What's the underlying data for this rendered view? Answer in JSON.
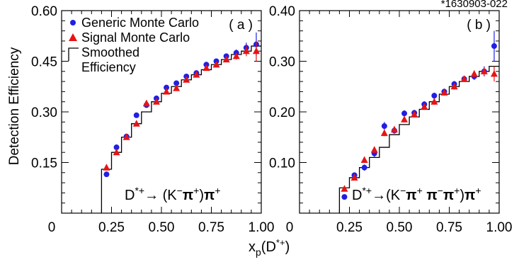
{
  "figure_id": "*1630903-022",
  "x_axis_label_main": "x",
  "x_axis_label_sub": "p",
  "x_axis_label_rest": "(D",
  "x_axis_label_sup": "*+",
  "x_axis_label_close": ")",
  "colors": {
    "generic": "#1f1fe6",
    "signal": "#e61414",
    "smoothed": "#000000",
    "frame": "#000000"
  },
  "chart_data": [
    {
      "type": "scatter",
      "panel_label": "( a )",
      "ylabel": "Detection Efficiency",
      "xlabel": "xp(D*+)",
      "xlim": [
        0,
        1.0
      ],
      "ylim": [
        0,
        0.6
      ],
      "x_ticks": [
        "0",
        "0.25",
        "0.50",
        "0.75",
        "1.00"
      ],
      "y_ticks": [
        "0.15",
        "0.30",
        "0.45",
        "0.60"
      ],
      "y_tick_values": [
        0.15,
        0.3,
        0.45,
        0.6
      ],
      "decay": {
        "parts": [
          {
            "t": "D",
            "sub": false
          },
          {
            "t": "*+",
            "sup": true
          },
          {
            "t": "→",
            "sup": false
          },
          {
            "t": " (K",
            "sup": false
          },
          {
            "t": "−",
            "sup": true
          },
          {
            "t": "π",
            "sup": false,
            "bold": true
          },
          {
            "t": "+",
            "sup": true
          },
          {
            "t": ")",
            "sup": false
          },
          {
            "t": "π",
            "sup": false,
            "bold": true
          },
          {
            "t": "+",
            "sup": true
          }
        ]
      },
      "legend": [
        {
          "marker": "circle",
          "color_key": "generic",
          "text": "Generic Monte Carlo"
        },
        {
          "marker": "triangle",
          "color_key": "signal",
          "text": "Signal Monte Carlo"
        },
        {
          "marker": "step",
          "color_key": "smoothed",
          "text": "Smoothed"
        },
        {
          "marker": "none",
          "color_key": "smoothed",
          "text": "Efficiency"
        }
      ],
      "series": [
        {
          "name": "Generic Monte Carlo",
          "marker": "circle",
          "x": [
            0.225,
            0.275,
            0.325,
            0.375,
            0.425,
            0.475,
            0.525,
            0.575,
            0.625,
            0.675,
            0.725,
            0.775,
            0.825,
            0.875,
            0.925,
            0.975
          ],
          "y": [
            0.115,
            0.195,
            0.227,
            0.29,
            0.32,
            0.34,
            0.372,
            0.385,
            0.405,
            0.415,
            0.44,
            0.45,
            0.465,
            0.475,
            0.49,
            0.5
          ],
          "err": [
            0.007,
            0.007,
            0.007,
            0.007,
            0.007,
            0.007,
            0.007,
            0.007,
            0.007,
            0.007,
            0.007,
            0.007,
            0.008,
            0.01,
            0.015,
            0.035
          ]
        },
        {
          "name": "Signal Monte Carlo",
          "marker": "triangle",
          "x": [
            0.225,
            0.275,
            0.325,
            0.375,
            0.425,
            0.475,
            0.525,
            0.575,
            0.625,
            0.675,
            0.725,
            0.775,
            0.825,
            0.875,
            0.925,
            0.975
          ],
          "y": [
            0.135,
            0.18,
            0.225,
            0.265,
            0.325,
            0.33,
            0.36,
            0.37,
            0.395,
            0.41,
            0.43,
            0.44,
            0.455,
            0.465,
            0.48,
            0.48
          ],
          "err": [
            0.007,
            0.007,
            0.007,
            0.007,
            0.007,
            0.007,
            0.007,
            0.007,
            0.007,
            0.007,
            0.007,
            0.008,
            0.008,
            0.01,
            0.015,
            0.03
          ]
        },
        {
          "name": "Smoothed Efficiency",
          "marker": "step",
          "edges": [
            0.2,
            0.25,
            0.3,
            0.35,
            0.4,
            0.45,
            0.5,
            0.55,
            0.6,
            0.65,
            0.7,
            0.75,
            0.8,
            0.85,
            0.9,
            0.95,
            1.0
          ],
          "values": [
            0.13,
            0.18,
            0.225,
            0.265,
            0.3,
            0.33,
            0.355,
            0.375,
            0.395,
            0.41,
            0.425,
            0.44,
            0.455,
            0.47,
            0.48,
            0.495
          ]
        }
      ]
    },
    {
      "type": "scatter",
      "panel_label": "( b )",
      "xlabel": "xp(D*+)",
      "xlim": [
        0,
        1.0
      ],
      "ylim": [
        0,
        0.4
      ],
      "x_ticks": [
        "0",
        "0.25",
        "0.50",
        "0.75",
        "1.00"
      ],
      "y_ticks": [
        "0.10",
        "0.20",
        "0.30",
        "0.40"
      ],
      "y_tick_values": [
        0.1,
        0.2,
        0.3,
        0.4
      ],
      "decay": {
        "parts": [
          {
            "t": "D",
            "sup": false
          },
          {
            "t": "*+",
            "sup": true
          },
          {
            "t": "→",
            "sup": false
          },
          {
            "t": "(K",
            "sup": false
          },
          {
            "t": "−",
            "sup": true
          },
          {
            "t": "π",
            "sup": false,
            "bold": true
          },
          {
            "t": "+",
            "sup": true
          },
          {
            "t": " π",
            "sup": false,
            "bold": true
          },
          {
            "t": "−",
            "sup": true
          },
          {
            "t": "π",
            "sup": false,
            "bold": true
          },
          {
            "t": "+",
            "sup": true
          },
          {
            "t": ")",
            "sup": false
          },
          {
            "t": "π",
            "sup": false,
            "bold": true
          },
          {
            "t": "+",
            "sup": true
          }
        ]
      },
      "series": [
        {
          "name": "Generic Monte Carlo",
          "marker": "circle",
          "x": [
            0.225,
            0.275,
            0.325,
            0.375,
            0.425,
            0.475,
            0.525,
            0.575,
            0.625,
            0.675,
            0.725,
            0.775,
            0.825,
            0.875,
            0.925,
            0.975
          ],
          "y": [
            0.032,
            0.075,
            0.09,
            0.118,
            0.172,
            0.163,
            0.197,
            0.198,
            0.215,
            0.232,
            0.24,
            0.255,
            0.265,
            0.27,
            0.28,
            0.33
          ],
          "err": [
            0.005,
            0.005,
            0.006,
            0.007,
            0.008,
            0.006,
            0.006,
            0.006,
            0.006,
            0.006,
            0.006,
            0.006,
            0.006,
            0.007,
            0.01,
            0.03
          ]
        },
        {
          "name": "Signal Monte Carlo",
          "marker": "triangle",
          "x": [
            0.225,
            0.275,
            0.325,
            0.375,
            0.425,
            0.475,
            0.525,
            0.575,
            0.625,
            0.675,
            0.725,
            0.775,
            0.825,
            0.875,
            0.925,
            0.975
          ],
          "y": [
            0.048,
            0.07,
            0.105,
            0.125,
            0.158,
            0.165,
            0.185,
            0.195,
            0.21,
            0.22,
            0.238,
            0.25,
            0.265,
            0.275,
            0.28,
            0.275
          ],
          "err": [
            0.005,
            0.005,
            0.005,
            0.006,
            0.006,
            0.006,
            0.006,
            0.006,
            0.006,
            0.006,
            0.006,
            0.006,
            0.006,
            0.007,
            0.008,
            0.015
          ]
        },
        {
          "name": "Smoothed Efficiency",
          "marker": "step",
          "edges": [
            0.2,
            0.25,
            0.3,
            0.35,
            0.4,
            0.45,
            0.5,
            0.55,
            0.6,
            0.65,
            0.7,
            0.75,
            0.8,
            0.85,
            0.9,
            0.95,
            1.0
          ],
          "values": [
            0.05,
            0.07,
            0.09,
            0.11,
            0.13,
            0.155,
            0.175,
            0.19,
            0.205,
            0.22,
            0.235,
            0.25,
            0.26,
            0.27,
            0.28,
            0.29
          ]
        }
      ]
    }
  ]
}
